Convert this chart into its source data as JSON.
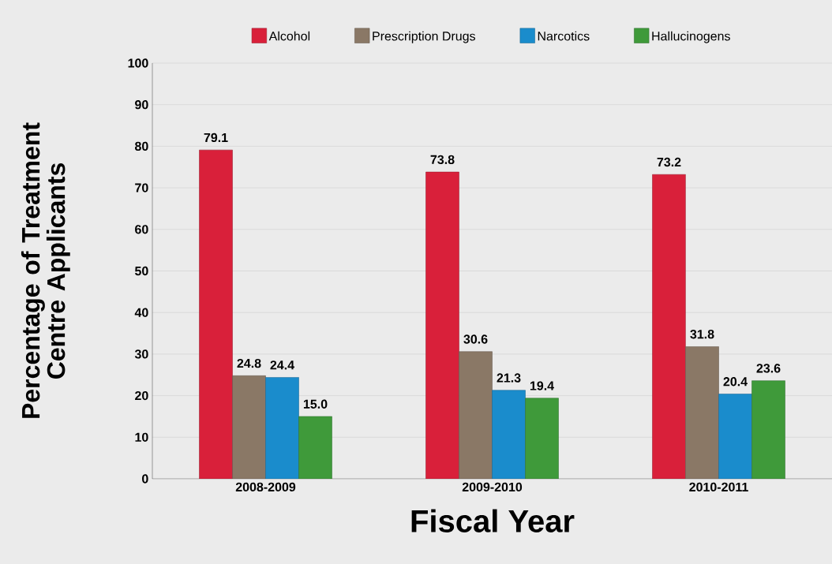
{
  "chart_data": {
    "type": "bar",
    "xlabel": "Fiscal Year",
    "ylabel": "Percentage of Treatment Centre Applicants",
    "categories": [
      "2008-2009",
      "2009-2010",
      "2010-2011"
    ],
    "series": [
      {
        "name": "Alcohol",
        "color": "#d9203a",
        "values": [
          79.1,
          73.8,
          73.2
        ],
        "value_labels": [
          "79.1",
          "73.8",
          "73.2"
        ]
      },
      {
        "name": "Prescription Drugs",
        "color": "#8a7866",
        "values": [
          24.8,
          30.6,
          31.8
        ],
        "value_labels": [
          "24.8",
          "30.6",
          "31.8"
        ]
      },
      {
        "name": "Narcotics",
        "color": "#1a8ccc",
        "values": [
          24.4,
          21.3,
          20.4
        ],
        "value_labels": [
          "24.4",
          "21.3",
          "20.4"
        ]
      },
      {
        "name": "Hallucinogens",
        "color": "#3f9a3a",
        "values": [
          15.0,
          19.4,
          23.6
        ],
        "value_labels": [
          "15.0",
          "19.4",
          "23.6"
        ]
      }
    ],
    "ylim": [
      0,
      100
    ],
    "yticks": [
      0,
      10,
      20,
      30,
      40,
      50,
      60,
      70,
      80,
      90,
      100
    ],
    "grid": "y",
    "legend": "top"
  }
}
